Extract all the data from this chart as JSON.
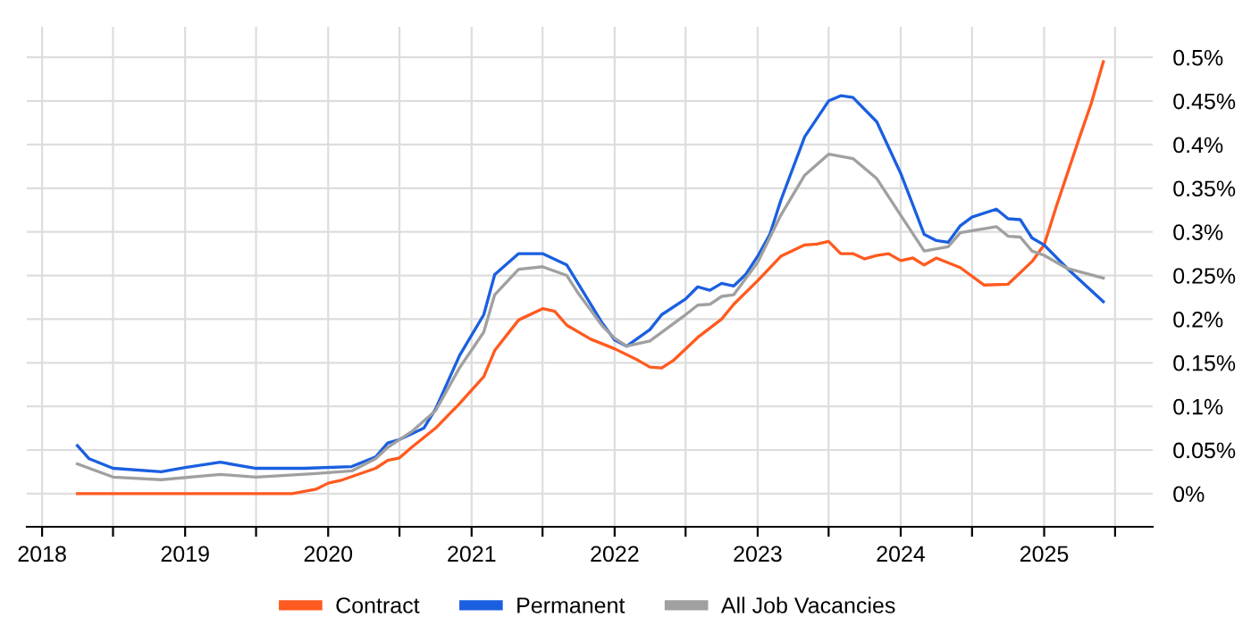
{
  "chart_data": {
    "type": "line",
    "xlim": [
      "2017-11-23",
      "2025-10-05"
    ],
    "xticks": [
      {
        "value": "2018-01-01",
        "label": "2018"
      },
      {
        "value": "2018-07-01",
        "label": null
      },
      {
        "value": "2019-01-01",
        "label": "2019"
      },
      {
        "value": "2019-07-01",
        "label": null
      },
      {
        "value": "2020-01-01",
        "label": "2020"
      },
      {
        "value": "2020-07-01",
        "label": null
      },
      {
        "value": "2021-01-01",
        "label": "2021"
      },
      {
        "value": "2021-07-01",
        "label": null
      },
      {
        "value": "2022-01-01",
        "label": "2022"
      },
      {
        "value": "2022-07-01",
        "label": null
      },
      {
        "value": "2023-01-01",
        "label": "2023"
      },
      {
        "value": "2023-07-01",
        "label": null
      },
      {
        "value": "2024-01-01",
        "label": "2024"
      },
      {
        "value": "2024-07-01",
        "label": null
      },
      {
        "value": "2025-01-01",
        "label": "2025"
      },
      {
        "value": "2025-07-01",
        "label": null
      }
    ],
    "ylim": [
      -0.038,
      0.535
    ],
    "yticks": [
      {
        "value": 0,
        "label": "0%"
      },
      {
        "value": 0.05,
        "label": "0.05%"
      },
      {
        "value": 0.1,
        "label": "0.1%"
      },
      {
        "value": 0.15,
        "label": "0.15%"
      },
      {
        "value": 0.2,
        "label": "0.2%"
      },
      {
        "value": 0.25,
        "label": "0.25%"
      },
      {
        "value": 0.3,
        "label": "0.3%"
      },
      {
        "value": 0.35,
        "label": "0.35%"
      },
      {
        "value": 0.4,
        "label": "0.4%"
      },
      {
        "value": 0.45,
        "label": "0.45%"
      },
      {
        "value": 0.5,
        "label": "0.5%"
      }
    ],
    "grid": true,
    "legend": "bottom",
    "marker": "none",
    "line_style": "solid",
    "series": [
      {
        "name": "Contract",
        "color": "#ff5a1f",
        "x": [
          "2018-04",
          "2019-10",
          "2019-12",
          "2020-01",
          "2020-02",
          "2020-05",
          "2020-06",
          "2020-07",
          "2020-08",
          "2020-10",
          "2020-12",
          "2021-02",
          "2021-03",
          "2021-05",
          "2021-07",
          "2021-08",
          "2021-09",
          "2021-11",
          "2022-01",
          "2022-03",
          "2022-04",
          "2022-05",
          "2022-06",
          "2022-08",
          "2022-10",
          "2022-11",
          "2023-01",
          "2023-03",
          "2023-05",
          "2023-06",
          "2023-07",
          "2023-08",
          "2023-09",
          "2023-10",
          "2023-11",
          "2023-12",
          "2024-01",
          "2024-02",
          "2024-03",
          "2024-04",
          "2024-06",
          "2024-08",
          "2024-10",
          "2024-12",
          "2025-01",
          "2025-02",
          "2025-04",
          "2025-05",
          "2025-06"
        ],
        "values": [
          0,
          0,
          0.005,
          0.012,
          0.015,
          0.029,
          0.038,
          0.041,
          0.053,
          0.075,
          0.103,
          0.134,
          0.164,
          0.199,
          0.212,
          0.209,
          0.193,
          0.177,
          0.166,
          0.153,
          0.145,
          0.144,
          0.153,
          0.179,
          0.2,
          0.217,
          0.244,
          0.272,
          0.285,
          0.286,
          0.289,
          0.275,
          0.275,
          0.269,
          0.273,
          0.275,
          0.267,
          0.27,
          0.262,
          0.27,
          0.259,
          0.239,
          0.24,
          0.266,
          0.285,
          0.329,
          0.408,
          0.447,
          0.495
        ]
      },
      {
        "name": "Permanent",
        "color": "#1a5fe0",
        "x": [
          "2018-04",
          "2018-05",
          "2018-07",
          "2018-11",
          "2019-01",
          "2019-04",
          "2019-07",
          "2019-11",
          "2020-03",
          "2020-05",
          "2020-06",
          "2020-07",
          "2020-09",
          "2020-10",
          "2020-12",
          "2021-02",
          "2021-03",
          "2021-05",
          "2021-07",
          "2021-09",
          "2021-10",
          "2021-12",
          "2022-01",
          "2022-02",
          "2022-04",
          "2022-05",
          "2022-07",
          "2022-08",
          "2022-09",
          "2022-10",
          "2022-11",
          "2022-12",
          "2023-01",
          "2023-02",
          "2023-03",
          "2023-05",
          "2023-07",
          "2023-08",
          "2023-09",
          "2023-11",
          "2024-01",
          "2024-03",
          "2024-04",
          "2024-05",
          "2024-06",
          "2024-07",
          "2024-09",
          "2024-10",
          "2024-11",
          "2024-12",
          "2025-01",
          "2025-03",
          "2025-06"
        ],
        "values": [
          0.055,
          0.04,
          0.029,
          0.025,
          0.03,
          0.036,
          0.029,
          0.029,
          0.031,
          0.042,
          0.058,
          0.062,
          0.075,
          0.097,
          0.158,
          0.205,
          0.251,
          0.275,
          0.275,
          0.262,
          0.24,
          0.195,
          0.176,
          0.169,
          0.188,
          0.205,
          0.223,
          0.237,
          0.233,
          0.241,
          0.238,
          0.251,
          0.272,
          0.297,
          0.336,
          0.409,
          0.45,
          0.456,
          0.454,
          0.426,
          0.367,
          0.297,
          0.29,
          0.288,
          0.307,
          0.317,
          0.326,
          0.315,
          0.314,
          0.293,
          0.285,
          0.258,
          0.22
        ]
      },
      {
        "name": "All Job Vacancies",
        "color": "#a0a0a0",
        "x": [
          "2018-04",
          "2018-07",
          "2018-11",
          "2019-04",
          "2019-07",
          "2019-12",
          "2020-03",
          "2020-05",
          "2020-06",
          "2020-08",
          "2020-10",
          "2020-12",
          "2021-02",
          "2021-03",
          "2021-05",
          "2021-07",
          "2021-09",
          "2021-10",
          "2021-12",
          "2022-01",
          "2022-02",
          "2022-04",
          "2022-07",
          "2022-08",
          "2022-09",
          "2022-10",
          "2022-11",
          "2023-01",
          "2023-03",
          "2023-05",
          "2023-07",
          "2023-09",
          "2023-11",
          "2024-01",
          "2024-03",
          "2024-05",
          "2024-06",
          "2024-09",
          "2024-10",
          "2024-11",
          "2024-12",
          "2025-01",
          "2025-03",
          "2025-06"
        ],
        "values": [
          0.034,
          0.019,
          0.016,
          0.022,
          0.019,
          0.023,
          0.026,
          0.04,
          0.053,
          0.071,
          0.095,
          0.144,
          0.185,
          0.228,
          0.257,
          0.26,
          0.25,
          0.229,
          0.192,
          0.178,
          0.169,
          0.175,
          0.205,
          0.216,
          0.217,
          0.226,
          0.228,
          0.265,
          0.319,
          0.365,
          0.389,
          0.384,
          0.361,
          0.319,
          0.278,
          0.283,
          0.299,
          0.306,
          0.295,
          0.294,
          0.278,
          0.273,
          0.258,
          0.247
        ]
      }
    ]
  }
}
